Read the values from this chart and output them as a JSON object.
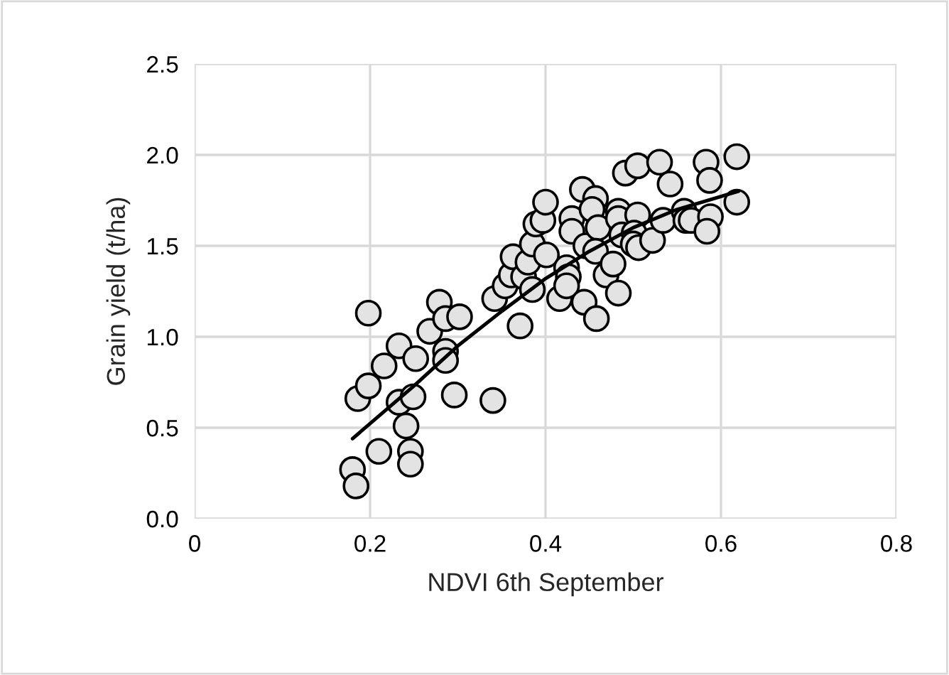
{
  "chart_data": {
    "type": "scatter",
    "xlabel": "NDVI 6th September",
    "ylabel": "Grain yield (t/ha)",
    "xlim": [
      0,
      0.8
    ],
    "xticks": [
      {
        "value": 0,
        "label": "0"
      },
      {
        "value": 0.2,
        "label": "0.2"
      },
      {
        "value": 0.4,
        "label": "0.4"
      },
      {
        "value": 0.6,
        "label": "0.6"
      },
      {
        "value": 0.8,
        "label": "0.8"
      }
    ],
    "ylim": [
      0,
      2.5
    ],
    "yticks": [
      {
        "value": 0,
        "label": "0.0"
      },
      {
        "value": 0.5,
        "label": "0.5"
      },
      {
        "value": 1.0,
        "label": "1.0"
      },
      {
        "value": 1.5,
        "label": "1.5"
      },
      {
        "value": 2.0,
        "label": "2.0"
      },
      {
        "value": 2.5,
        "label": "2.5"
      }
    ],
    "grid": true,
    "legend": false,
    "series": [
      {
        "color": "#e3e3e3",
        "marker": "circle",
        "x": [
          0.198,
          0.18,
          0.184,
          0.21,
          0.186,
          0.198,
          0.216,
          0.233,
          0.252,
          0.233,
          0.249,
          0.241,
          0.246,
          0.246,
          0.268,
          0.279,
          0.286,
          0.302,
          0.286,
          0.286,
          0.296,
          0.34,
          0.342,
          0.371,
          0.354,
          0.361,
          0.363,
          0.375,
          0.38,
          0.385,
          0.385,
          0.389,
          0.397,
          0.4,
          0.401,
          0.416,
          0.424,
          0.426,
          0.424,
          0.43,
          0.43,
          0.444,
          0.458,
          0.442,
          0.457,
          0.453,
          0.446,
          0.46,
          0.457,
          0.469,
          0.477,
          0.483,
          0.483,
          0.483,
          0.487,
          0.491,
          0.505,
          0.505,
          0.501,
          0.5,
          0.506,
          0.522,
          0.53,
          0.534,
          0.542,
          0.558,
          0.56,
          0.566,
          0.583,
          0.587,
          0.588,
          0.584,
          0.618,
          0.618
        ],
        "values": [
          1.13,
          0.27,
          0.18,
          0.37,
          0.66,
          0.73,
          0.84,
          0.95,
          0.88,
          0.64,
          0.67,
          0.51,
          0.37,
          0.3,
          1.03,
          1.19,
          1.1,
          1.11,
          0.92,
          0.87,
          0.68,
          0.65,
          1.21,
          1.06,
          1.28,
          1.34,
          1.44,
          1.33,
          1.41,
          1.51,
          1.26,
          1.62,
          1.64,
          1.74,
          1.45,
          1.21,
          1.38,
          1.33,
          1.28,
          1.65,
          1.58,
          1.19,
          1.1,
          1.81,
          1.76,
          1.7,
          1.5,
          1.6,
          1.47,
          1.34,
          1.4,
          1.24,
          1.69,
          1.65,
          1.56,
          1.9,
          1.94,
          1.67,
          1.57,
          1.51,
          1.49,
          1.53,
          1.96,
          1.64,
          1.84,
          1.69,
          1.64,
          1.64,
          1.96,
          1.86,
          1.66,
          1.58,
          1.99,
          1.74
        ]
      },
      {
        "type": "line",
        "color": "#000000",
        "marker": "none",
        "line_style": "solid",
        "x": [
          0.18,
          0.25,
          0.3,
          0.35,
          0.4,
          0.45,
          0.5,
          0.55,
          0.62
        ],
        "values": [
          0.44,
          0.73,
          0.95,
          1.14,
          1.32,
          1.47,
          1.6,
          1.7,
          1.8
        ]
      }
    ]
  }
}
